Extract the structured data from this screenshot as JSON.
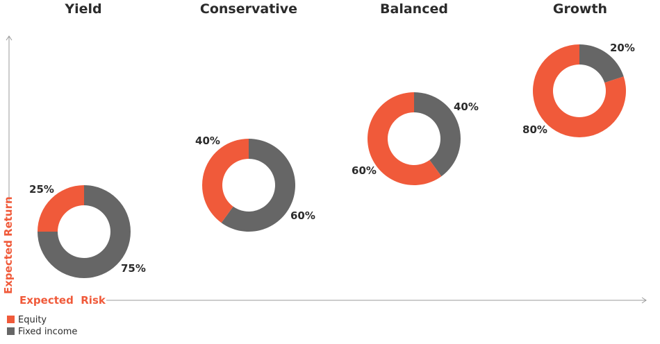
{
  "chart_data": {
    "type": "pie",
    "variant": "donut",
    "colors": {
      "equity": "#f05a3a",
      "fixed_income": "#666666"
    },
    "legend": [
      {
        "key": "equity",
        "label": "Equity"
      },
      {
        "key": "fixed_income",
        "label": "Fixed income"
      }
    ],
    "x_axis_label": "Expected  Risk",
    "y_axis_label": "Expected Return",
    "portfolios": [
      {
        "name": "Yield",
        "equity": 25,
        "fixed_income": 75,
        "equity_label": "25%",
        "fixed_income_label": "75%"
      },
      {
        "name": "Conservative",
        "equity": 40,
        "fixed_income": 60,
        "equity_label": "40%",
        "fixed_income_label": "60%"
      },
      {
        "name": "Balanced",
        "equity": 60,
        "fixed_income": 40,
        "equity_label": "60%",
        "fixed_income_label": "40%"
      },
      {
        "name": "Growth",
        "equity": 80,
        "fixed_income": 20,
        "equity_label": "80%",
        "fixed_income_label": "20%"
      }
    ]
  }
}
